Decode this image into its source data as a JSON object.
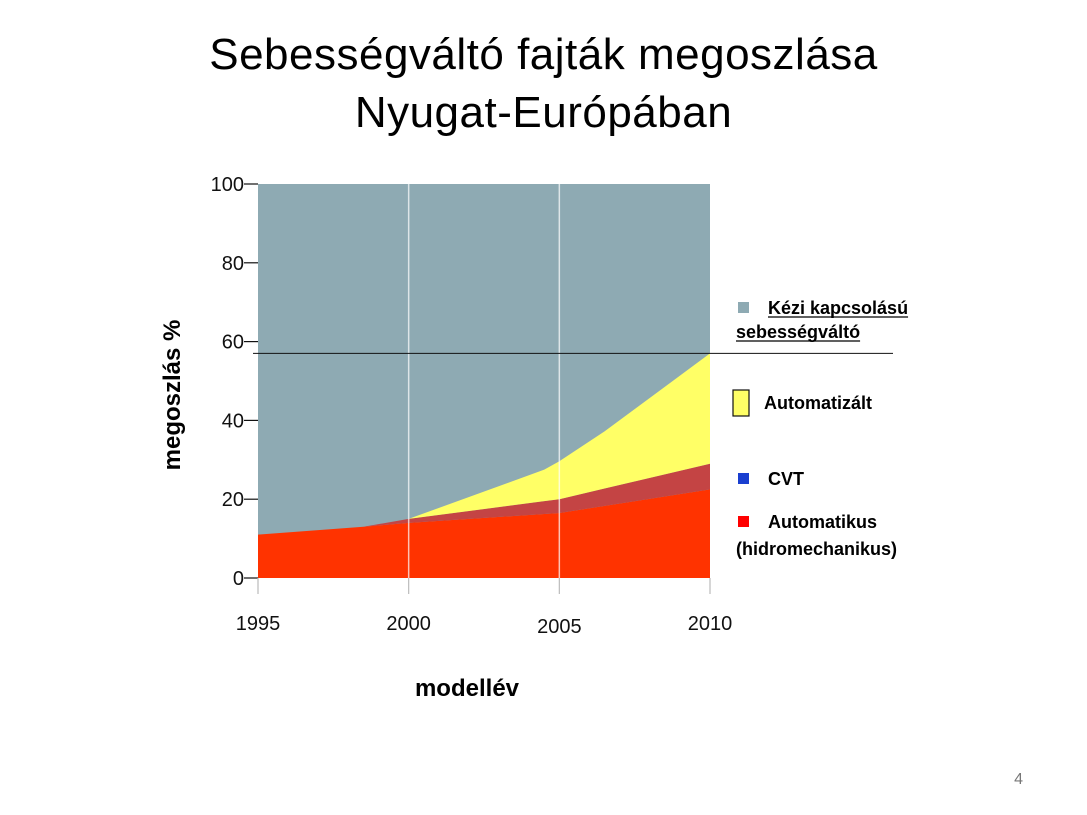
{
  "slide": {
    "title_line_1": "Sebességváltó fajták megoszlása",
    "title_line_2": "Nyugat-Európában",
    "page_number": "4"
  },
  "colors": {
    "manual": "#8eaab3",
    "automated": "#ffff66",
    "cvt": "#c44444",
    "automatic": "#ff3300",
    "legend_cvt_marker": "#1a3fd0",
    "legend_automatic_marker": "#ff0000"
  },
  "chart_data": {
    "type": "area",
    "stacked": true,
    "xlabel": "modellév",
    "ylabel": "megoszlás %",
    "x_ticks": [
      "1995",
      "2000",
      "2005",
      "2010"
    ],
    "y_ticks": [
      "0",
      "20",
      "40",
      "60",
      "80",
      "100"
    ],
    "xlim": [
      1995,
      2010
    ],
    "ylim": [
      0,
      100
    ],
    "grid": true,
    "reference_line_y": 57,
    "legend_position": "right",
    "series": [
      {
        "name": "Automatikus (hidromechanikus)",
        "label_lines": [
          "Automatikus",
          "(hidromechanikus)"
        ],
        "x": [
          1995,
          1998.5,
          2000,
          2005,
          2010
        ],
        "y": [
          11,
          13,
          14,
          16.5,
          22.5
        ]
      },
      {
        "name": "CVT",
        "label_lines": [
          "CVT"
        ],
        "x": [
          1995,
          1998.5,
          2000,
          2005,
          2010
        ],
        "y": [
          0,
          0,
          1,
          3.5,
          6.5
        ]
      },
      {
        "name": "Automatizált",
        "label_lines": [
          "Automatizált"
        ],
        "x": [
          1995,
          1998.5,
          2000,
          2004.5,
          2006.5,
          2010
        ],
        "y": [
          0,
          0,
          0,
          8,
          14.5,
          28
        ]
      },
      {
        "name": "Kézi kapcsolású sebességváltó",
        "label_lines": [
          "Kézi kapcsolású",
          "sebességváltó"
        ],
        "fills_to": 100
      }
    ]
  }
}
